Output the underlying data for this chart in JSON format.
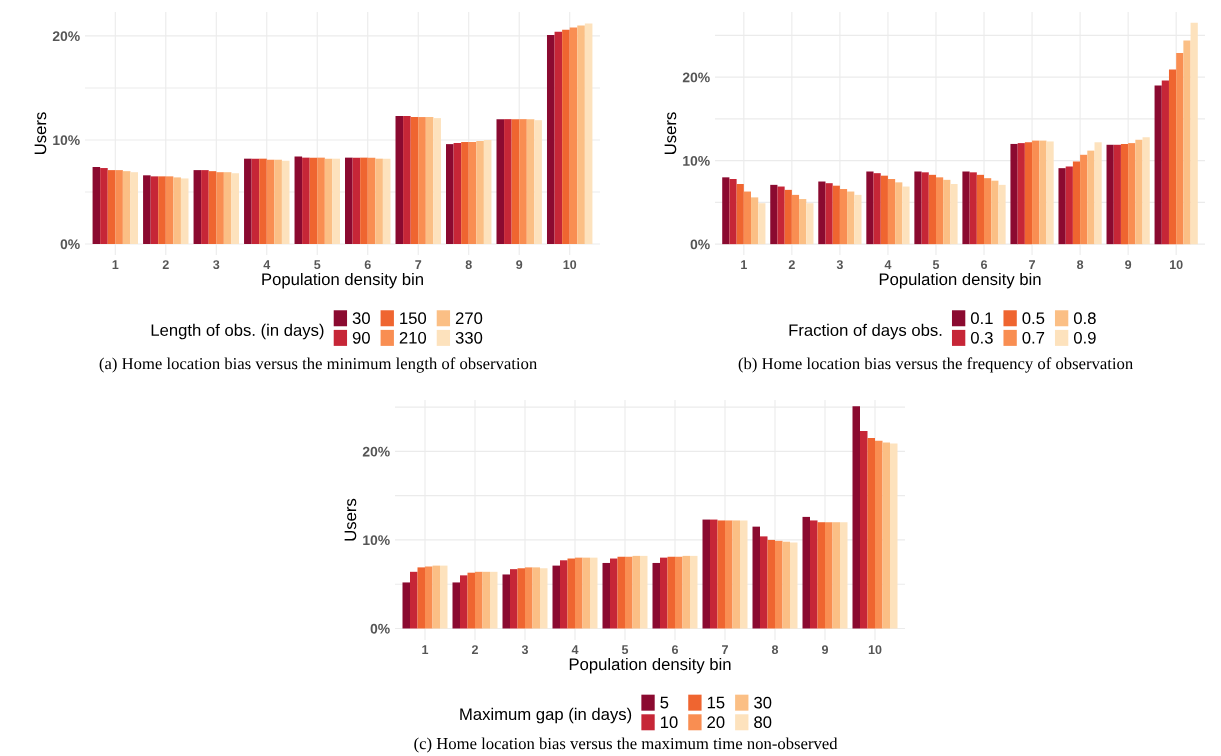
{
  "chart_data": [
    {
      "type": "bar",
      "xlabel": "Population density bin",
      "ylabel": "Users",
      "legend_title": "Length of obs. (in days)",
      "legend": "bottom",
      "grid": true,
      "categories": [
        "1",
        "2",
        "3",
        "4",
        "5",
        "6",
        "7",
        "8",
        "9",
        "10"
      ],
      "ylim": [
        -1.06,
        22.3
      ],
      "yticks": [
        {
          "value": 0,
          "label": "0%"
        },
        {
          "value": 5,
          "label": null
        },
        {
          "value": 10,
          "label": "10%"
        },
        {
          "value": 15,
          "label": null
        },
        {
          "value": 20,
          "label": "20%"
        }
      ],
      "annotations": [
        "(a) Home location bias versus the minimum length of observation"
      ],
      "series": [
        {
          "name": "30",
          "color": "#8b0a30",
          "values": [
            7.4,
            6.6,
            7.1,
            8.2,
            8.4,
            8.3,
            12.3,
            9.6,
            12.0,
            20.1
          ]
        },
        {
          "name": "90",
          "color": "#c62637",
          "values": [
            7.3,
            6.5,
            7.1,
            8.2,
            8.3,
            8.3,
            12.3,
            9.7,
            12.0,
            20.4
          ]
        },
        {
          "name": "150",
          "color": "#ef6530",
          "values": [
            7.1,
            6.5,
            7.0,
            8.2,
            8.3,
            8.3,
            12.2,
            9.8,
            12.0,
            20.6
          ]
        },
        {
          "name": "210",
          "color": "#f98e52",
          "values": [
            7.1,
            6.5,
            6.9,
            8.1,
            8.3,
            8.3,
            12.2,
            9.8,
            12.0,
            20.8
          ]
        },
        {
          "name": "270",
          "color": "#fbbf85",
          "values": [
            7.0,
            6.4,
            6.9,
            8.1,
            8.2,
            8.2,
            12.2,
            9.9,
            12.0,
            21.0
          ]
        },
        {
          "name": "330",
          "color": "#fde2bd",
          "values": [
            6.9,
            6.3,
            6.8,
            8.0,
            8.2,
            8.2,
            12.1,
            10.0,
            11.9,
            21.2
          ]
        }
      ]
    },
    {
      "type": "bar",
      "xlabel": "Population density bin",
      "ylabel": "Users",
      "legend_title": "Fraction of days obs.",
      "legend": "bottom",
      "grid": true,
      "categories": [
        "1",
        "2",
        "3",
        "4",
        "5",
        "6",
        "7",
        "8",
        "9",
        "10"
      ],
      "ylim": [
        -1.3,
        27.8
      ],
      "yticks": [
        {
          "value": 0,
          "label": "0%"
        },
        {
          "value": 5,
          "label": null
        },
        {
          "value": 10,
          "label": "10%"
        },
        {
          "value": 15,
          "label": null
        },
        {
          "value": 20,
          "label": "20%"
        },
        {
          "value": 25,
          "label": null
        }
      ],
      "annotations": [
        "(b) Home location bias versus the frequency of observation"
      ],
      "series": [
        {
          "name": "0.1",
          "color": "#8b0a30",
          "values": [
            8.0,
            7.1,
            7.5,
            8.7,
            8.7,
            8.7,
            12.0,
            9.1,
            11.9,
            19.0
          ]
        },
        {
          "name": "0.3",
          "color": "#c62637",
          "values": [
            7.8,
            6.9,
            7.3,
            8.5,
            8.6,
            8.6,
            12.1,
            9.3,
            11.9,
            19.6
          ]
        },
        {
          "name": "0.5",
          "color": "#ef6530",
          "values": [
            7.2,
            6.5,
            7.0,
            8.2,
            8.3,
            8.3,
            12.2,
            9.9,
            12.0,
            20.9
          ]
        },
        {
          "name": "0.7",
          "color": "#f98e52",
          "values": [
            6.3,
            5.9,
            6.6,
            7.8,
            8.0,
            7.9,
            12.4,
            10.7,
            12.1,
            22.9
          ]
        },
        {
          "name": "0.8",
          "color": "#fbbf85",
          "values": [
            5.6,
            5.4,
            6.3,
            7.4,
            7.7,
            7.6,
            12.4,
            11.2,
            12.5,
            24.4
          ]
        },
        {
          "name": "0.9",
          "color": "#fde2bd",
          "values": [
            4.9,
            4.9,
            5.9,
            6.9,
            7.2,
            7.1,
            12.3,
            12.2,
            12.8,
            26.5
          ]
        }
      ]
    },
    {
      "type": "bar",
      "xlabel": "Population density bin",
      "ylabel": "Users",
      "legend_title": "Maximum gap (in days)",
      "legend": "bottom",
      "grid": true,
      "categories": [
        "1",
        "2",
        "3",
        "4",
        "5",
        "6",
        "7",
        "8",
        "9",
        "10"
      ],
      "ylim": [
        -1.3,
        25.8
      ],
      "yticks": [
        {
          "value": 0,
          "label": "0%"
        },
        {
          "value": 5,
          "label": null
        },
        {
          "value": 10,
          "label": "10%"
        },
        {
          "value": 15,
          "label": null
        },
        {
          "value": 20,
          "label": "20%"
        },
        {
          "value": 25,
          "label": null
        }
      ],
      "annotations": [
        "(c) Home location bias versus the maximum time non-observed"
      ],
      "series": [
        {
          "name": "5",
          "color": "#8b0a30",
          "values": [
            5.2,
            5.2,
            6.1,
            7.1,
            7.4,
            7.4,
            12.3,
            11.5,
            12.6,
            25.1
          ]
        },
        {
          "name": "10",
          "color": "#c62637",
          "values": [
            6.4,
            6.0,
            6.7,
            7.7,
            7.9,
            8.0,
            12.3,
            10.4,
            12.2,
            22.3
          ]
        },
        {
          "name": "15",
          "color": "#ef6530",
          "values": [
            6.9,
            6.3,
            6.8,
            7.9,
            8.1,
            8.1,
            12.2,
            10.0,
            12.0,
            21.5
          ]
        },
        {
          "name": "20",
          "color": "#f98e52",
          "values": [
            7.0,
            6.4,
            6.9,
            8.0,
            8.1,
            8.1,
            12.2,
            9.9,
            12.0,
            21.2
          ]
        },
        {
          "name": "30",
          "color": "#fbbf85",
          "values": [
            7.1,
            6.4,
            6.9,
            8.0,
            8.2,
            8.2,
            12.2,
            9.8,
            12.0,
            21.0
          ]
        },
        {
          "name": "80",
          "color": "#fde2bd",
          "values": [
            7.1,
            6.4,
            6.8,
            8.0,
            8.2,
            8.2,
            12.2,
            9.7,
            12.0,
            20.9
          ]
        }
      ]
    }
  ]
}
